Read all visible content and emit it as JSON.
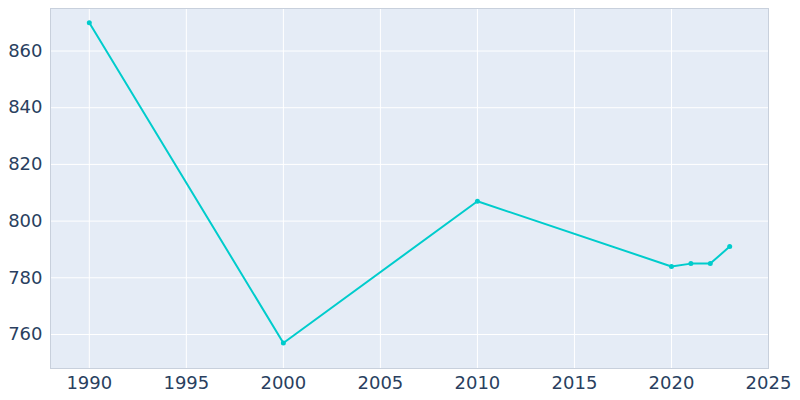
{
  "chart_data": {
    "type": "line",
    "x": [
      1990,
      2000,
      2010,
      2020,
      2021,
      2022,
      2023
    ],
    "values": [
      870,
      757,
      807,
      784,
      785,
      785,
      791
    ],
    "color": "#00cccc",
    "marker": "circle",
    "line_style": "solid",
    "xlim": [
      1988,
      2025
    ],
    "xticks": [
      1990,
      1995,
      2000,
      2005,
      2010,
      2015,
      2020,
      2025
    ],
    "ylim": [
      748,
      875
    ],
    "yticks": [
      760,
      780,
      800,
      820,
      840,
      860
    ],
    "grid": true
  }
}
